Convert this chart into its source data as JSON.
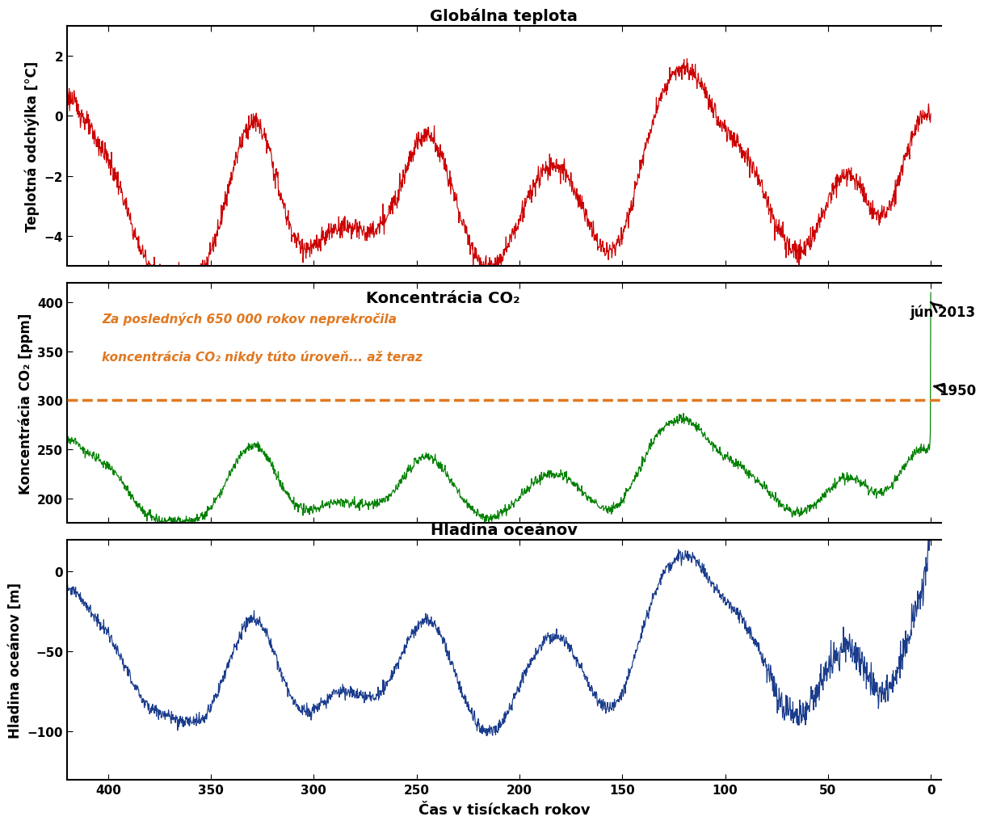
{
  "title1": "Globálna teplota",
  "title2": "Koncentrácia CO₂",
  "title3": "Hladina oceánov",
  "ylabel1": "Teplotná odchýlka [°C]",
  "ylabel2": "Koncentrácia CO₂ [ppm]",
  "ylabel3": "Hladina oceánov [m]",
  "xlabel": "Čas v tisíckach rokov",
  "annotation_line1": "Za posledných 650 000 rokov neprekročila",
  "annotation_line2": "koncentrácia CO₂ nikdy túto úroveň... až teraz",
  "jun2013_label": "jún 2013",
  "yr1950_label": "1950",
  "threshold_co2": 300,
  "color_temp": "#cc0000",
  "color_co2": "#008000",
  "color_ocean": "#1a3c8c",
  "color_threshold": "#e07820",
  "color_annotation": "#e07820",
  "bg_color": "#ffffff",
  "xlim": [
    420,
    -5
  ],
  "temp_ylim": [
    -5,
    3
  ],
  "co2_ylim": [
    175,
    420
  ],
  "ocean_ylim": [
    -130,
    20
  ],
  "temp_yticks": [
    -4,
    -2,
    0,
    2
  ],
  "co2_yticks": [
    200,
    250,
    300,
    350,
    400
  ],
  "ocean_yticks": [
    -100,
    -50,
    0
  ],
  "xticks": [
    400,
    350,
    300,
    250,
    200,
    150,
    100,
    50,
    0
  ]
}
